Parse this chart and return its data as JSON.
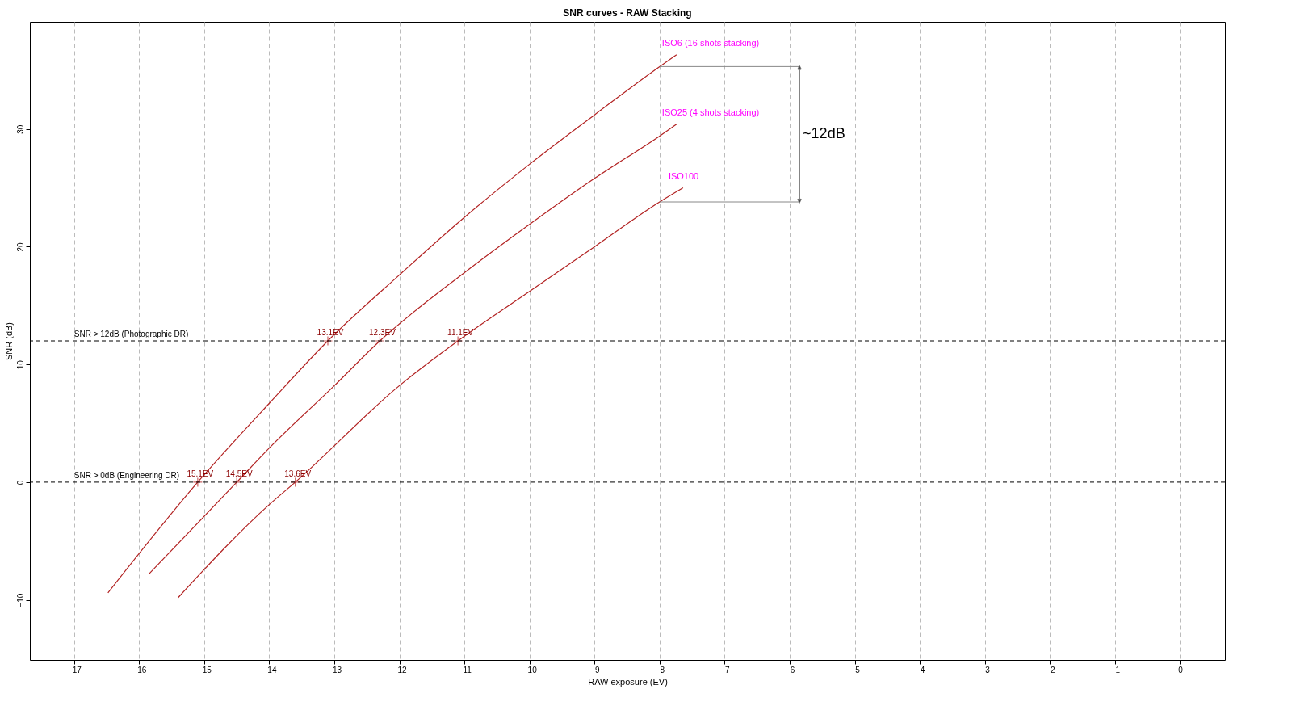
{
  "chart_data": {
    "type": "line",
    "title": "SNR curves - RAW Stacking",
    "xlabel": "RAW exposure (EV)",
    "ylabel": "SNR (dB)",
    "xlim": [
      -17.68,
      0.69
    ],
    "ylim": [
      -15.1,
      39.1
    ],
    "xticks": [
      -17,
      -16,
      -15,
      -14,
      -13,
      -12,
      -11,
      -10,
      -9,
      -8,
      -7,
      -6,
      -5,
      -4,
      -3,
      -2,
      -1,
      0
    ],
    "yticks": [
      -10,
      0,
      10,
      20,
      30
    ],
    "grid": "x",
    "line_style": "solid",
    "series": [
      {
        "name": "ISO6 (16 shots stacking)",
        "color": "#b22222",
        "x": [
          -16.48,
          -15.1,
          -14,
          -13.1,
          -12,
          -11,
          -10,
          -9,
          -8,
          -7.74
        ],
        "values": [
          -9.4,
          0,
          6.7,
          12,
          17.6,
          22.5,
          27.0,
          31.2,
          35.3,
          36.3
        ]
      },
      {
        "name": "ISO25 (4 shots stacking)",
        "color": "#b22222",
        "x": [
          -15.85,
          -14.5,
          -14,
          -13,
          -12.3,
          -11,
          -10,
          -9,
          -8,
          -7.74
        ],
        "values": [
          -7.8,
          0,
          2.9,
          8.2,
          12,
          17.8,
          21.9,
          25.8,
          29.4,
          30.4
        ]
      },
      {
        "name": "ISO100",
        "color": "#b22222",
        "x": [
          -15.4,
          -14,
          -13.6,
          -12,
          -11.1,
          -10,
          -9,
          -8,
          -7.64
        ],
        "values": [
          -9.8,
          -1.9,
          0,
          8.2,
          12,
          16.2,
          20.0,
          23.8,
          25.0
        ]
      },
      {
        "type": "scatter",
        "marker": "cross",
        "color": "#b22222",
        "x": [
          -15.1,
          -14.5,
          -13.6,
          -13.1,
          -12.3,
          -11.1
        ],
        "values": [
          0,
          0,
          0,
          12,
          12,
          12
        ]
      }
    ],
    "ref_lines": [
      {
        "axis": "y",
        "value": 12,
        "label": "SNR > 12dB (Photographic DR)",
        "color": "#000000",
        "line_style": "dashed"
      },
      {
        "axis": "y",
        "value": 0,
        "label": "SNR > 0dB (Engineering DR)",
        "color": "#000000",
        "line_style": "dashed"
      }
    ],
    "annotations": [
      {
        "text": "15.1EV",
        "x": -15.1,
        "y": 0
      },
      {
        "text": "14.5EV",
        "x": -14.5,
        "y": 0
      },
      {
        "text": "13.6EV",
        "x": -13.6,
        "y": 0
      },
      {
        "text": "13.1EV",
        "x": -13.1,
        "y": 12
      },
      {
        "text": "12.3EV",
        "x": -12.3,
        "y": 12
      },
      {
        "text": "11.1EV",
        "x": -11.1,
        "y": 12
      },
      "~12dB"
    ]
  }
}
